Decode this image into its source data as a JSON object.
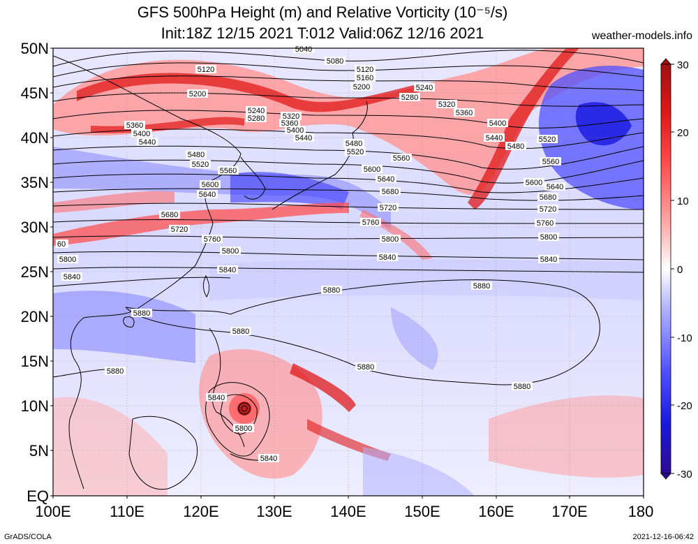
{
  "title": {
    "line1": "GFS 500hPa Height (m) and Relative Vorticity (10⁻⁵/s)",
    "line2": "Init:18Z 12/15 2021 T:012 Valid:06Z 12/16 2021"
  },
  "site": "weather-models.info",
  "footer": {
    "left": "GrADS/COLA",
    "right": "2021-12-16-06:42"
  },
  "map": {
    "lat_labels": [
      "50N",
      "45N",
      "40N",
      "35N",
      "30N",
      "25N",
      "20N",
      "15N",
      "10N",
      "5N",
      "EQ"
    ],
    "lon_labels": [
      "100E",
      "110E",
      "120E",
      "130E",
      "140E",
      "150E",
      "160E",
      "170E",
      "180"
    ],
    "colorbar": {
      "ticks": [
        "30",
        "20",
        "10",
        "0",
        "-10",
        "-20",
        "-30"
      ],
      "colors": [
        "#b01010",
        "#e01818",
        "#ff4a4a",
        "#ff9a9a",
        "#ffdada",
        "#ffffff",
        "#dadaff",
        "#9a9aff",
        "#4a4aff",
        "#1818e0",
        "#2a0aa0"
      ]
    },
    "contours": [
      {
        "label": "5040",
        "lines": []
      },
      {
        "label": "5080"
      },
      {
        "label": "5120"
      },
      {
        "label": "5160"
      },
      {
        "label": "5200"
      },
      {
        "label": "5240"
      },
      {
        "label": "5280"
      },
      {
        "label": "5320"
      },
      {
        "label": "5360"
      },
      {
        "label": "5400"
      },
      {
        "label": "5440"
      },
      {
        "label": "5480"
      },
      {
        "label": "5520"
      },
      {
        "label": "5560"
      },
      {
        "label": "5600"
      },
      {
        "label": "5640"
      },
      {
        "label": "5680"
      },
      {
        "label": "5720"
      },
      {
        "label": "5760"
      },
      {
        "label": "5800"
      },
      {
        "label": "5840"
      },
      {
        "label": "5880"
      }
    ]
  }
}
